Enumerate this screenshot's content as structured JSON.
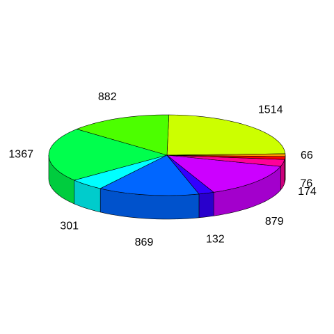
{
  "chart_data": {
    "type": "pie",
    "style": "3d",
    "values": [
      1514,
      882,
      1367,
      301,
      869,
      132,
      879,
      174,
      76,
      66
    ],
    "labels": [
      "1514",
      "882",
      "1367",
      "301",
      "869",
      "132",
      "879",
      "174",
      "76",
      "66"
    ],
    "colors": [
      "#CCFF00",
      "#4CFF00",
      "#00FF4D",
      "#00FFFF",
      "#0066FF",
      "#3300FF",
      "#CC00FF",
      "#FF0099",
      "#FF0000",
      "#FF9900"
    ]
  }
}
